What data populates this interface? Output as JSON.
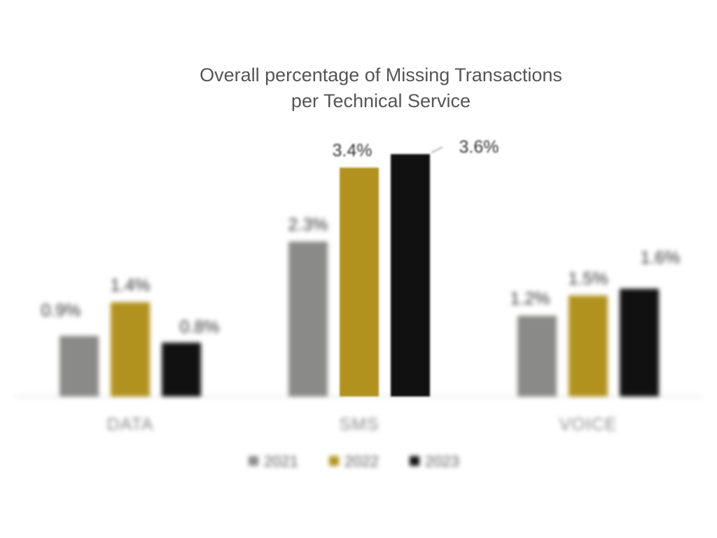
{
  "chart_data": {
    "type": "bar",
    "title_lines": [
      "Overall percentage of Missing Transactions",
      "per Technical Service"
    ],
    "categories": [
      "DATA",
      "SMS",
      "VOICE"
    ],
    "series": [
      {
        "name": "2021",
        "color": "#8a8a88",
        "values": [
          0.9,
          2.3,
          1.2
        ],
        "labels": [
          "0.9%",
          "2.3%",
          "1.2%"
        ]
      },
      {
        "name": "2022",
        "color": "#b1921f",
        "values": [
          1.4,
          3.4,
          1.5
        ],
        "labels": [
          "1.4%",
          "3.4%",
          "1.5%"
        ]
      },
      {
        "name": "2023",
        "color": "#111111",
        "values": [
          0.8,
          3.6,
          1.6
        ],
        "labels": [
          "0.8%",
          "3.6%",
          "1.6%"
        ]
      }
    ],
    "ylim": [
      0,
      3.6
    ],
    "grid": false,
    "legend_position": "bottom"
  }
}
